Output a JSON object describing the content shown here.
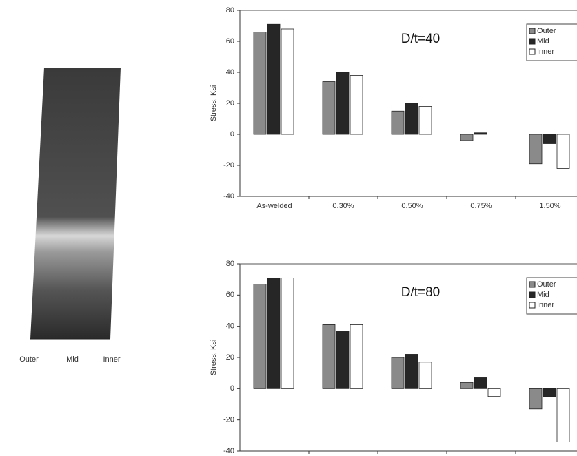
{
  "figure": {
    "labels": [
      "Outer",
      "Mid",
      "Inner"
    ]
  },
  "chart_data": [
    {
      "type": "bar",
      "title": "D/t=40",
      "y_label": "Stress, Ksi",
      "categories": [
        "As-welded",
        "0.30%",
        "0.50%",
        "0.75%",
        "1.50%"
      ],
      "series": [
        {
          "name": "Outer",
          "color": "#8a8a8a",
          "values": [
            66,
            34,
            15,
            -4,
            -19
          ]
        },
        {
          "name": "Mid",
          "color": "#262626",
          "values": [
            71,
            40,
            20,
            1,
            -6
          ]
        },
        {
          "name": "Inner",
          "color": "#ffffff",
          "values": [
            68,
            38,
            18,
            0,
            -22
          ]
        }
      ],
      "ylim": [
        -40,
        80
      ],
      "yticks": [
        -40,
        -20,
        0,
        20,
        40,
        60,
        80
      ],
      "grid": false,
      "legend": "top-right"
    },
    {
      "type": "bar",
      "title": "D/t=80",
      "y_label": "Stress, Ksi",
      "categories": [
        null,
        null,
        null,
        null,
        null
      ],
      "series": [
        {
          "name": "Outer",
          "color": "#8a8a8a",
          "values": [
            67,
            41,
            20,
            4,
            -13
          ]
        },
        {
          "name": "Mid",
          "color": "#262626",
          "values": [
            71,
            37,
            22,
            7,
            -5
          ]
        },
        {
          "name": "Inner",
          "color": "#ffffff",
          "values": [
            71,
            41,
            17,
            -5,
            -34
          ]
        }
      ],
      "ylim": [
        -40,
        80
      ],
      "yticks": [
        -40,
        -20,
        0,
        20,
        40,
        60,
        80
      ],
      "grid": false,
      "legend": "top-right"
    }
  ]
}
